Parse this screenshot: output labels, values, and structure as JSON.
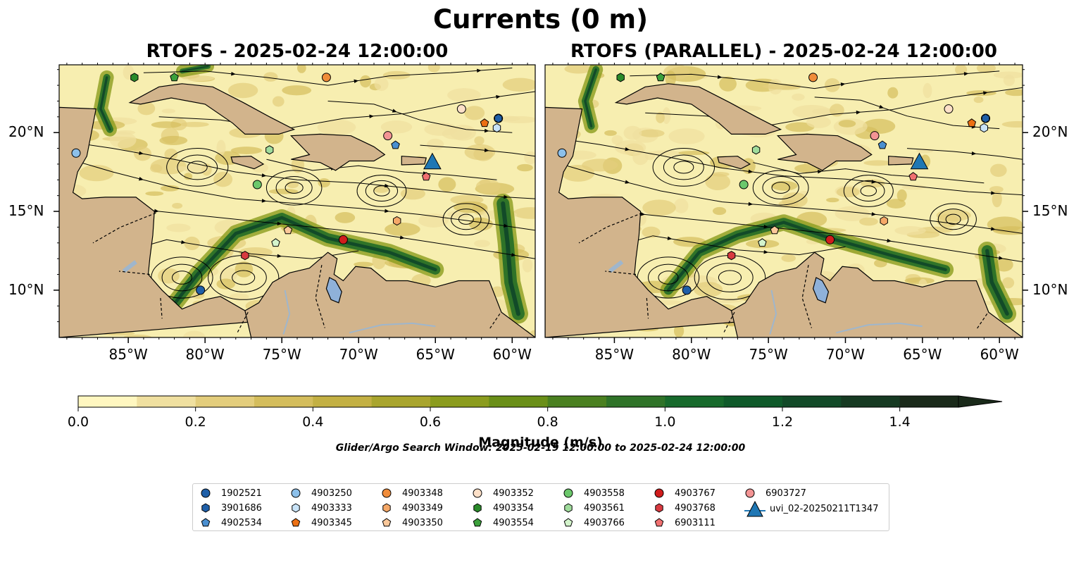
{
  "suptitle": "Currents (0 m)",
  "subtitles": [
    "RTOFS - 2025-02-24 12:00:00",
    "RTOFS (PARALLEL) - 2025-02-24 12:00:00"
  ],
  "colors": {
    "land": "#d2b48c",
    "lake": "#8fb1d9",
    "river": "#9fb6cc",
    "colorbar": [
      "#fff7c0",
      "#f0e0a0",
      "#e3cd7c",
      "#d4bd5c",
      "#c3b043",
      "#a9a52e",
      "#8b9c1e",
      "#6a8f18",
      "#4a8020",
      "#2f7328",
      "#176a2c",
      "#0f5a2a",
      "#124a28",
      "#163a22",
      "#1a2a1a"
    ]
  },
  "maps": {
    "lon_ticks": [
      "85°W",
      "80°W",
      "75°W",
      "70°W",
      "65°W",
      "60°W"
    ],
    "lat_ticks": [
      "20°N",
      "15°N",
      "10°N"
    ],
    "lon_values": [
      -85,
      -80,
      -75,
      -70,
      -65,
      -60
    ],
    "lat_values": [
      20,
      15,
      10
    ],
    "extent": {
      "lon": [
        -89.5,
        -58.5
      ],
      "lat": [
        7.0,
        24.3
      ]
    }
  },
  "colorbar": {
    "title": "Magnitude (m/s)",
    "tick_labels": [
      "0.0",
      "0.2",
      "0.4",
      "0.6",
      "0.8",
      "1.0",
      "1.2",
      "1.4"
    ],
    "ticks": [
      0,
      0.2,
      0.4,
      0.6,
      0.8,
      1.0,
      1.2,
      1.4
    ],
    "levels": [
      0,
      0.1,
      0.2,
      0.3,
      0.4,
      0.5,
      0.6,
      0.7,
      0.8,
      0.9,
      1.0,
      1.1,
      1.2,
      1.3,
      1.4,
      1.5
    ],
    "extend": "max"
  },
  "search_window": "Glider/Argo Search Window: 2025-02-19 12:00:00 to 2025-02-24 12:00:00",
  "chart_data": {
    "type": "scatter",
    "title": "Currents (0 m)",
    "xlabel": "",
    "ylabel": "",
    "xlim": [
      -89.5,
      -58.5
    ],
    "ylim": [
      7.0,
      24.3
    ],
    "panels": [
      "RTOFS - 2025-02-24 12:00:00",
      "RTOFS (PARALLEL) - 2025-02-24 12:00:00"
    ],
    "legend_position": "bottom-center",
    "series": [
      {
        "name": "1902521",
        "marker": "circle",
        "color": "#1f5fa8",
        "points": [
          [
            -80.3,
            10.0
          ],
          [
            -60.9,
            20.9
          ]
        ]
      },
      {
        "name": "3901686",
        "marker": "hexagon",
        "color": "#1f5fa8",
        "points": [
          [
            -60.9,
            20.9
          ]
        ]
      },
      {
        "name": "4902534",
        "marker": "pentagon",
        "color": "#4a8fd0",
        "points": [
          [
            -67.6,
            19.2
          ]
        ]
      },
      {
        "name": "4903250",
        "marker": "circle",
        "color": "#8cc0ea",
        "points": [
          [
            -88.4,
            18.7
          ]
        ]
      },
      {
        "name": "4903333",
        "marker": "hexagon",
        "color": "#c8e3f8",
        "points": [
          [
            -61.0,
            20.3
          ]
        ]
      },
      {
        "name": "4903345",
        "marker": "pentagon",
        "color": "#ec7014",
        "points": [
          [
            -61.8,
            20.6
          ]
        ]
      },
      {
        "name": "4903348",
        "marker": "circle",
        "color": "#f08c3a",
        "points": [
          [
            -72.1,
            23.5
          ]
        ]
      },
      {
        "name": "4903349",
        "marker": "hexagon",
        "color": "#f5a868",
        "points": [
          [
            -67.5,
            14.4
          ]
        ]
      },
      {
        "name": "4903350",
        "marker": "pentagon",
        "color": "#fbc89a",
        "points": [
          [
            -74.6,
            13.8
          ]
        ]
      },
      {
        "name": "4903352",
        "marker": "circle",
        "color": "#fde0c8",
        "points": [
          [
            -63.3,
            21.5
          ]
        ]
      },
      {
        "name": "4903354",
        "marker": "hexagon",
        "color": "#2a8a2a",
        "points": [
          [
            -84.6,
            23.5
          ]
        ]
      },
      {
        "name": "4903554",
        "marker": "pentagon",
        "color": "#3ca03c",
        "points": [
          [
            -82.0,
            23.5
          ]
        ]
      },
      {
        "name": "4903558",
        "marker": "circle",
        "color": "#6cc86c",
        "points": [
          [
            -76.6,
            16.7
          ]
        ]
      },
      {
        "name": "4903561",
        "marker": "hexagon",
        "color": "#a0dc9c",
        "points": [
          [
            -75.8,
            18.9
          ]
        ]
      },
      {
        "name": "4903766",
        "marker": "pentagon",
        "color": "#d4f4cc",
        "points": [
          [
            -75.4,
            13.0
          ]
        ]
      },
      {
        "name": "4903767",
        "marker": "circle",
        "color": "#d01c1c",
        "points": [
          [
            -71.0,
            13.2
          ]
        ]
      },
      {
        "name": "4903768",
        "marker": "hexagon",
        "color": "#d83a40",
        "points": [
          [
            -77.4,
            12.2
          ]
        ]
      },
      {
        "name": "6903111",
        "marker": "pentagon",
        "color": "#f07070",
        "points": [
          [
            -65.6,
            17.2
          ]
        ]
      },
      {
        "name": "6903727",
        "marker": "circle",
        "color": "#f39494",
        "points": [
          [
            -68.1,
            19.8
          ]
        ]
      },
      {
        "name": "uvi_02-20250211T1347",
        "marker": "triangle",
        "color": "#1f77b4",
        "points": [
          [
            -65.2,
            18.1
          ]
        ]
      }
    ]
  }
}
